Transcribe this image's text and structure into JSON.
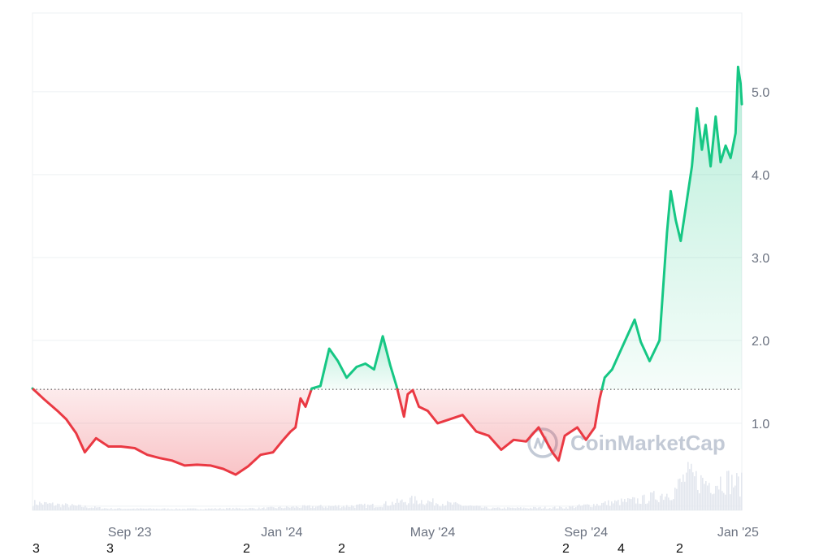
{
  "chart_data": {
    "type": "area",
    "baseline": 1.41,
    "ylim": [
      -0.05,
      5.95
    ],
    "y_ticks": [
      "1.0",
      "2.0",
      "3.0",
      "4.0",
      "5.0"
    ],
    "y_tick_values": [
      1.0,
      2.0,
      3.0,
      4.0,
      5.0
    ],
    "x_ticks": [
      "Sep '23",
      "Jan '24",
      "May '24",
      "Sep '24",
      "Jan '25"
    ],
    "x_tick_dates": [
      "2023-09-01",
      "2024-01-01",
      "2024-05-01",
      "2024-09-01",
      "2025-01-01"
    ],
    "x_range": [
      "2023-06-15",
      "2025-01-04"
    ],
    "grid": true,
    "colors": {
      "up": "#16c784",
      "down": "#ea3943",
      "grid": "#eef0f3",
      "volume": "#e3e7ee"
    },
    "bottom_labels": [
      "3",
      "3",
      "2",
      "2",
      "2",
      "4",
      "2"
    ],
    "watermark": "CoinMarketCap",
    "series": [
      {
        "x": [
          "2023-06-15",
          "2023-06-25",
          "2023-07-05",
          "2023-07-12",
          "2023-07-20",
          "2023-07-27",
          "2023-08-05",
          "2023-08-15",
          "2023-08-25",
          "2023-09-05",
          "2023-09-15",
          "2023-09-25",
          "2023-10-05",
          "2023-10-15",
          "2023-10-25",
          "2023-11-05",
          "2023-11-15",
          "2023-11-25",
          "2023-12-05",
          "2023-12-15",
          "2023-12-25",
          "2024-01-01",
          "2024-01-08",
          "2024-01-12",
          "2024-01-16",
          "2024-01-20",
          "2024-01-25",
          "2024-02-01",
          "2024-02-08",
          "2024-02-15",
          "2024-02-22",
          "2024-03-01",
          "2024-03-08",
          "2024-03-15",
          "2024-03-22",
          "2024-03-28",
          "2024-04-02",
          "2024-04-08",
          "2024-04-11",
          "2024-04-15",
          "2024-04-20",
          "2024-04-27",
          "2024-05-05",
          "2024-05-15",
          "2024-05-25",
          "2024-06-05",
          "2024-06-15",
          "2024-06-25",
          "2024-07-05",
          "2024-07-15",
          "2024-07-25",
          "2024-08-05",
          "2024-08-10",
          "2024-08-15",
          "2024-08-20",
          "2024-08-25",
          "2024-09-01",
          "2024-09-08",
          "2024-09-12",
          "2024-09-16",
          "2024-09-22",
          "2024-10-01",
          "2024-10-10",
          "2024-10-15",
          "2024-10-22",
          "2024-10-30",
          "2024-11-05",
          "2024-11-08",
          "2024-11-12",
          "2024-11-16",
          "2024-11-20",
          "2024-11-25",
          "2024-11-29",
          "2024-12-03",
          "2024-12-06",
          "2024-12-10",
          "2024-12-14",
          "2024-12-18",
          "2024-12-22",
          "2024-12-26",
          "2024-12-30",
          "2025-01-01",
          "2025-01-03",
          "2025-01-04"
        ],
        "values": [
          1.42,
          1.28,
          1.15,
          1.05,
          0.88,
          0.65,
          0.82,
          0.72,
          0.72,
          0.7,
          0.62,
          0.58,
          0.55,
          0.49,
          0.5,
          0.49,
          0.45,
          0.38,
          0.48,
          0.62,
          0.65,
          0.78,
          0.9,
          0.95,
          1.3,
          1.2,
          1.42,
          1.45,
          1.9,
          1.75,
          1.55,
          1.68,
          1.72,
          1.65,
          2.05,
          1.7,
          1.45,
          1.08,
          1.35,
          1.4,
          1.2,
          1.15,
          1.0,
          1.05,
          1.1,
          0.9,
          0.85,
          0.68,
          0.8,
          0.78,
          0.95,
          0.65,
          0.55,
          0.85,
          0.9,
          0.95,
          0.8,
          0.95,
          1.3,
          1.55,
          1.65,
          1.95,
          2.25,
          1.98,
          1.75,
          2.0,
          3.3,
          3.8,
          3.45,
          3.2,
          3.6,
          4.1,
          4.8,
          4.3,
          4.6,
          4.1,
          4.7,
          4.15,
          4.35,
          4.2,
          4.5,
          5.3,
          5.1,
          4.85
        ]
      }
    ],
    "volume": {
      "x": [
        "2023-06-15",
        "2023-08-15",
        "2023-10-15",
        "2023-12-15",
        "2024-01-15",
        "2024-03-15",
        "2024-04-15",
        "2024-06-15",
        "2024-08-15",
        "2024-09-15",
        "2024-10-15",
        "2024-11-10",
        "2024-11-20",
        "2024-12-01",
        "2024-12-10",
        "2024-12-20",
        "2025-01-03"
      ],
      "values": [
        0.22,
        0.05,
        0.04,
        0.06,
        0.1,
        0.14,
        0.3,
        0.06,
        0.08,
        0.2,
        0.3,
        0.55,
        1.0,
        0.85,
        0.8,
        0.9,
        0.75
      ]
    }
  }
}
